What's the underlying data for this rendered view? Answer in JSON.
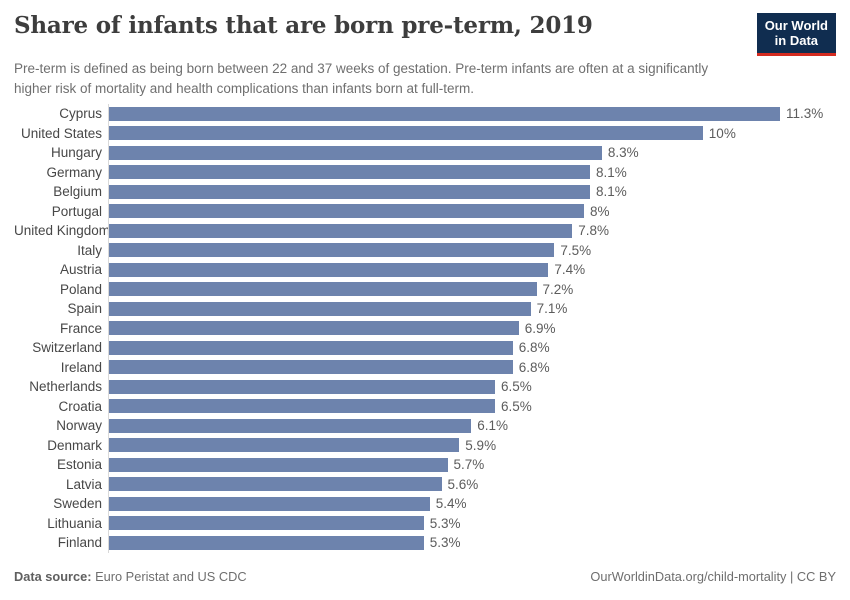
{
  "header": {
    "title": "Share of infants that are born pre-term, 2019",
    "subtitle": "Pre-term is defined as being born between 22 and 37 weeks of gestation. Pre-term infants are often at a significantly higher risk of mortality and health complications than infants born at full-term.",
    "logo": {
      "line1": "Our World",
      "line2": "in Data"
    }
  },
  "chart_data": {
    "type": "bar",
    "orientation": "horizontal",
    "title": "Share of infants that are born pre-term, 2019",
    "categories": [
      "Cyprus",
      "United States",
      "Hungary",
      "Germany",
      "Belgium",
      "Portugal",
      "United Kingdom",
      "Italy",
      "Austria",
      "Poland",
      "Spain",
      "France",
      "Switzerland",
      "Ireland",
      "Netherlands",
      "Croatia",
      "Norway",
      "Denmark",
      "Estonia",
      "Latvia",
      "Sweden",
      "Lithuania",
      "Finland"
    ],
    "values": [
      11.3,
      10,
      8.3,
      8.1,
      8.1,
      8,
      7.8,
      7.5,
      7.4,
      7.2,
      7.1,
      6.9,
      6.8,
      6.8,
      6.5,
      6.5,
      6.1,
      5.9,
      5.7,
      5.6,
      5.4,
      5.3,
      5.3
    ],
    "value_labels": [
      "11.3%",
      "10%",
      "8.3%",
      "8.1%",
      "8.1%",
      "8%",
      "7.8%",
      "7.5%",
      "7.4%",
      "7.2%",
      "7.1%",
      "6.9%",
      "6.8%",
      "6.8%",
      "6.5%",
      "6.5%",
      "6.1%",
      "5.9%",
      "5.7%",
      "5.6%",
      "5.4%",
      "5.3%",
      "5.3%"
    ],
    "xlim": [
      0,
      11.3
    ],
    "unit": "%",
    "grid": false,
    "legend": false,
    "bar_color": "#6d83ad",
    "axis_line_color": "#d9d9d9"
  },
  "footer": {
    "datasource_label": "Data source:",
    "datasource_value": " Euro Peristat and US CDC",
    "right_text": "OurWorldinData.org/child-mortality | CC BY"
  },
  "colors": {
    "title": "#3d3d3d",
    "subtitle": "#6f6f6f",
    "logo_bg": "#102d50",
    "logo_accent": "#d42b20",
    "bar": "#6d83ad"
  }
}
